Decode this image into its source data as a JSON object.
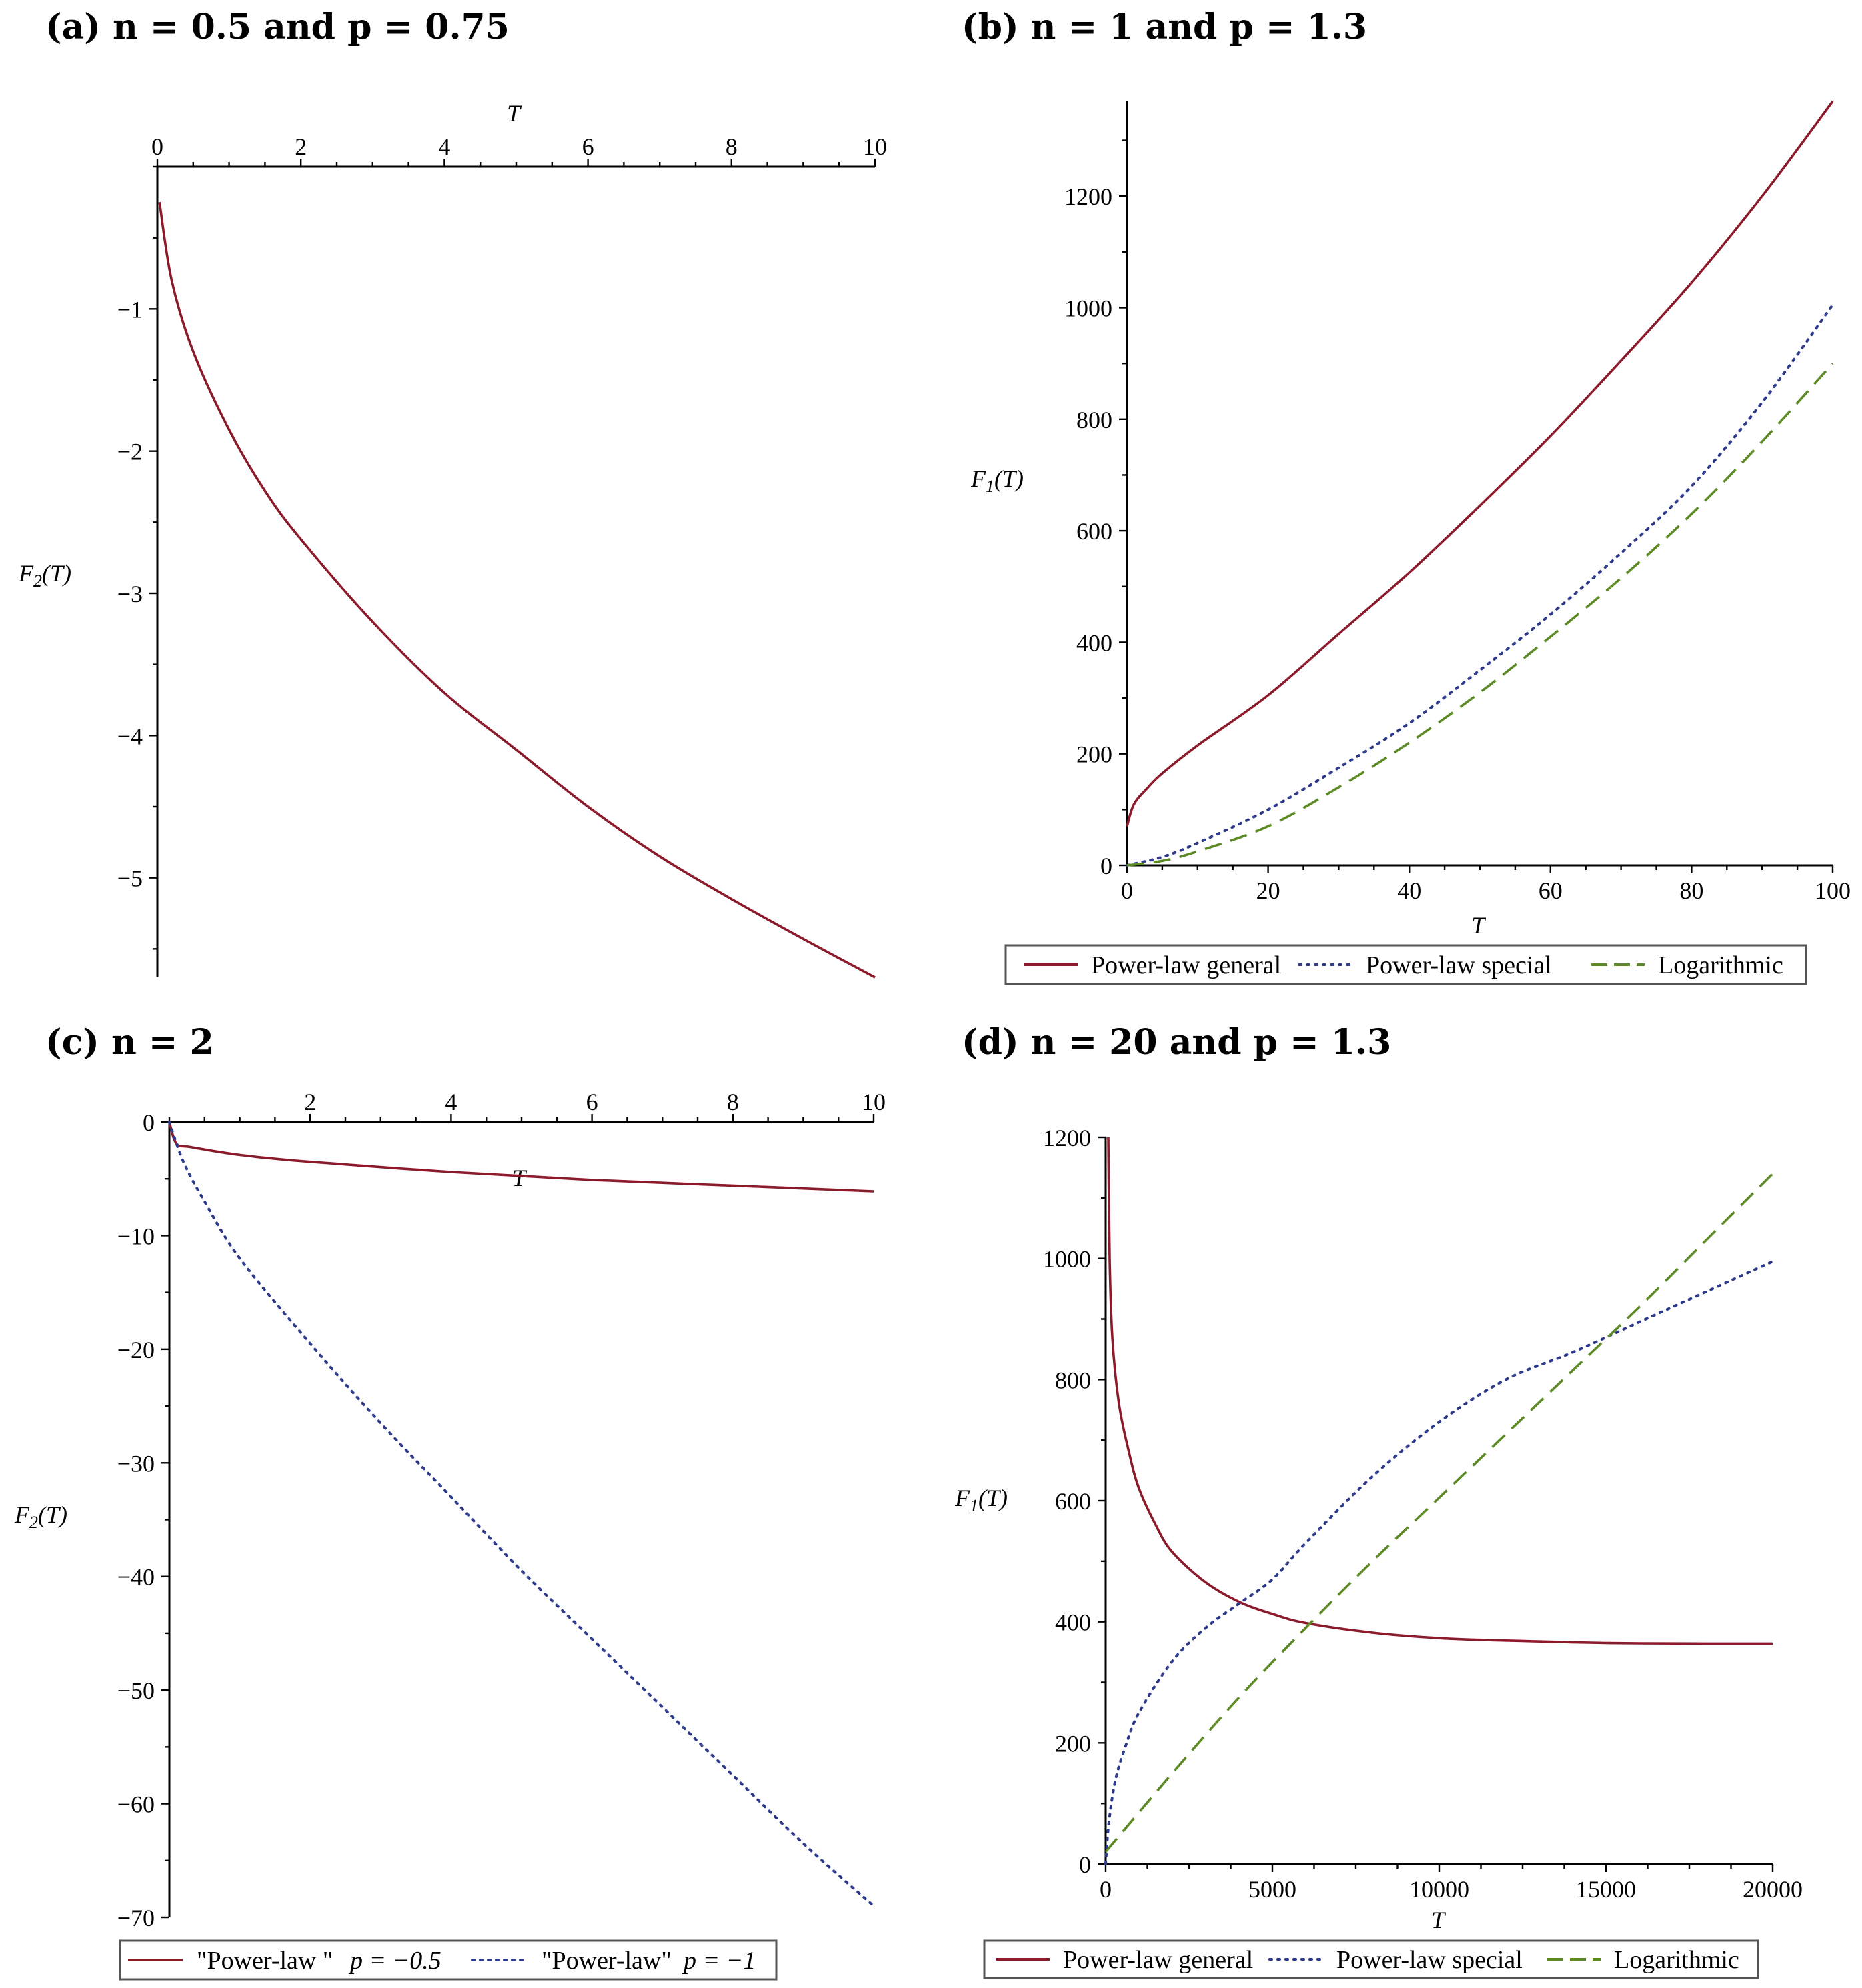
{
  "chart_data": [
    {
      "id": "a",
      "type": "line",
      "title": "(a) n = 0.5 and p = 0.75",
      "xlabel": "T",
      "ylabel": "F2(T)",
      "ylabel_main": "F",
      "ylabel_sub": "2",
      "ylabel_arg": "(T)",
      "xlim": [
        0,
        10
      ],
      "ylim": [
        -5.7,
        0
      ],
      "x_axis_at": "top",
      "xticks": [
        0,
        2,
        4,
        6,
        8,
        10
      ],
      "xtick_labels": [
        "0",
        "2",
        "4",
        "6",
        "8",
        "10"
      ],
      "yticks": [
        -1,
        -2,
        -3,
        -4,
        -5
      ],
      "ytick_labels": [
        "−1",
        "−2",
        "−3",
        "−4",
        "−5"
      ],
      "legend": null,
      "series": [
        {
          "name": "F2(T)",
          "color": "#8b1a2b",
          "style": "solid",
          "x": [
            0.03,
            0.2,
            0.5,
            1,
            1.5,
            2,
            3,
            4,
            5,
            6,
            7,
            8,
            9,
            10
          ],
          "y": [
            -0.25,
            -0.8,
            -1.3,
            -1.85,
            -2.28,
            -2.62,
            -3.2,
            -3.7,
            -4.1,
            -4.5,
            -4.85,
            -5.15,
            -5.43,
            -5.7
          ]
        }
      ]
    },
    {
      "id": "b",
      "type": "line",
      "title": "(b) n = 1 and p = 1.3",
      "xlabel": "T",
      "ylabel": "F1(T)",
      "ylabel_main": "F",
      "ylabel_sub": "1",
      "ylabel_arg": "(T)",
      "xlim": [
        0,
        100
      ],
      "ylim": [
        0,
        1370
      ],
      "x_axis_at": "bottom",
      "xticks": [
        0,
        20,
        40,
        60,
        80,
        100
      ],
      "xtick_labels": [
        "0",
        "20",
        "40",
        "60",
        "80",
        "100"
      ],
      "yticks": [
        0,
        200,
        400,
        600,
        800,
        1000,
        1200
      ],
      "ytick_labels": [
        "0",
        "200",
        "400",
        "600",
        "800",
        "1000",
        "1200"
      ],
      "legend": [
        "Power-law general",
        "Power-law special",
        "Logarithmic"
      ],
      "series": [
        {
          "name": "Power-law general",
          "color": "#8b1a2b",
          "style": "solid",
          "x": [
            0,
            1,
            3,
            5,
            10,
            20,
            30,
            40,
            50,
            60,
            70,
            80,
            90,
            100
          ],
          "y": [
            70,
            110,
            140,
            165,
            215,
            305,
            415,
            525,
            645,
            770,
            905,
            1045,
            1200,
            1370
          ]
        },
        {
          "name": "Power-law special",
          "color": "#2e3a8c",
          "style": "dotted",
          "x": [
            0,
            5,
            10,
            20,
            30,
            40,
            50,
            60,
            70,
            80,
            90,
            100
          ],
          "y": [
            0,
            15,
            40,
            100,
            175,
            255,
            350,
            450,
            560,
            680,
            830,
            1005
          ]
        },
        {
          "name": "Logarithmic",
          "color": "#5c8a24",
          "style": "dashed",
          "x": [
            0,
            5,
            10,
            20,
            30,
            40,
            50,
            60,
            70,
            80,
            90,
            100
          ],
          "y": [
            0,
            8,
            25,
            70,
            140,
            220,
            310,
            410,
            515,
            630,
            760,
            900
          ]
        }
      ]
    },
    {
      "id": "c",
      "type": "line",
      "title": "(c) n = 2",
      "xlabel": "T",
      "ylabel": "F2(T)",
      "ylabel_main": "F",
      "ylabel_sub": "2",
      "ylabel_arg": "(T)",
      "xlim": [
        0,
        10
      ],
      "ylim": [
        -70,
        0
      ],
      "x_axis_at": "top",
      "xlabel_pos": "middle",
      "xticks": [
        2,
        4,
        6,
        8,
        10
      ],
      "xtick_labels": [
        "2",
        "4",
        "6",
        "8",
        "10"
      ],
      "yticks": [
        0,
        -10,
        -20,
        -30,
        -40,
        -50,
        -60,
        -70
      ],
      "ytick_labels": [
        "0",
        "−10",
        "−20",
        "−30",
        "−40",
        "−50",
        "−60",
        "−70"
      ],
      "legend_texts": [
        "\"Power-law \"",
        "p = −0.5",
        "\"Power-law\"",
        "p = −1"
      ],
      "series": [
        {
          "name": "\"Power-law \" p = −0.5",
          "color": "#8b1a2b",
          "style": "solid",
          "x": [
            0,
            0.1,
            0.3,
            1,
            2,
            4,
            6,
            8,
            10
          ],
          "y": [
            0,
            -1.9,
            -2.2,
            -2.9,
            -3.5,
            -4.4,
            -5.1,
            -5.6,
            -6.1
          ]
        },
        {
          "name": "\"Power-law\" p = −1",
          "color": "#2e3a8c",
          "style": "dotted",
          "x": [
            0,
            0.2,
            0.5,
            1,
            2,
            3,
            4,
            5,
            6,
            7,
            8,
            9,
            10
          ],
          "y": [
            0,
            -3.5,
            -7,
            -12,
            -19.5,
            -26.5,
            -33,
            -39.5,
            -45.5,
            -51.5,
            -57.5,
            -63.5,
            -69
          ]
        }
      ]
    },
    {
      "id": "d",
      "type": "line",
      "title": "(d) n = 20 and p = 1.3",
      "xlabel": "T",
      "ylabel": "F1(T)",
      "ylabel_main": "F",
      "ylabel_sub": "1",
      "ylabel_arg": "(T)",
      "xlim": [
        0,
        20000
      ],
      "ylim": [
        0,
        1200
      ],
      "x_axis_at": "bottom",
      "xticks": [
        0,
        5000,
        10000,
        15000,
        20000
      ],
      "xtick_labels": [
        "0",
        "5000",
        "10000",
        "15000",
        "20000"
      ],
      "yticks": [
        0,
        200,
        400,
        600,
        800,
        1000,
        1200
      ],
      "ytick_labels": [
        "0",
        "200",
        "400",
        "600",
        "800",
        "1000",
        "1200"
      ],
      "legend": [
        "Power-law general",
        "Power-law special",
        "Logarithmic"
      ],
      "series": [
        {
          "name": "Power-law general",
          "color": "#8b1a2b",
          "style": "solid",
          "x": [
            80,
            120,
            200,
            400,
            700,
            1000,
            1500,
            2000,
            3000,
            4000,
            5000,
            6000,
            8000,
            10000,
            12000,
            15000,
            18000,
            20000
          ],
          "y": [
            1200,
            1000,
            870,
            760,
            680,
            620,
            560,
            515,
            465,
            433,
            413,
            398,
            382,
            373,
            369,
            365,
            364,
            364
          ]
        },
        {
          "name": "Power-law special",
          "color": "#2e3a8c",
          "style": "dotted",
          "x": [
            0,
            100,
            300,
            600,
            1000,
            2000,
            3000,
            4000,
            5000,
            6000,
            8000,
            10000,
            12000,
            14000,
            16000,
            18000,
            20000
          ],
          "y": [
            0,
            70,
            140,
            195,
            250,
            335,
            390,
            430,
            470,
            530,
            640,
            730,
            800,
            845,
            895,
            945,
            995
          ]
        },
        {
          "name": "Logarithmic",
          "color": "#5c8a24",
          "style": "dashed",
          "x": [
            0,
            2000,
            4000,
            6000,
            8000,
            10000,
            12000,
            14000,
            16000,
            18000,
            20000
          ],
          "y": [
            20,
            150,
            275,
            390,
            500,
            605,
            710,
            815,
            920,
            1030,
            1140
          ]
        }
      ]
    }
  ]
}
